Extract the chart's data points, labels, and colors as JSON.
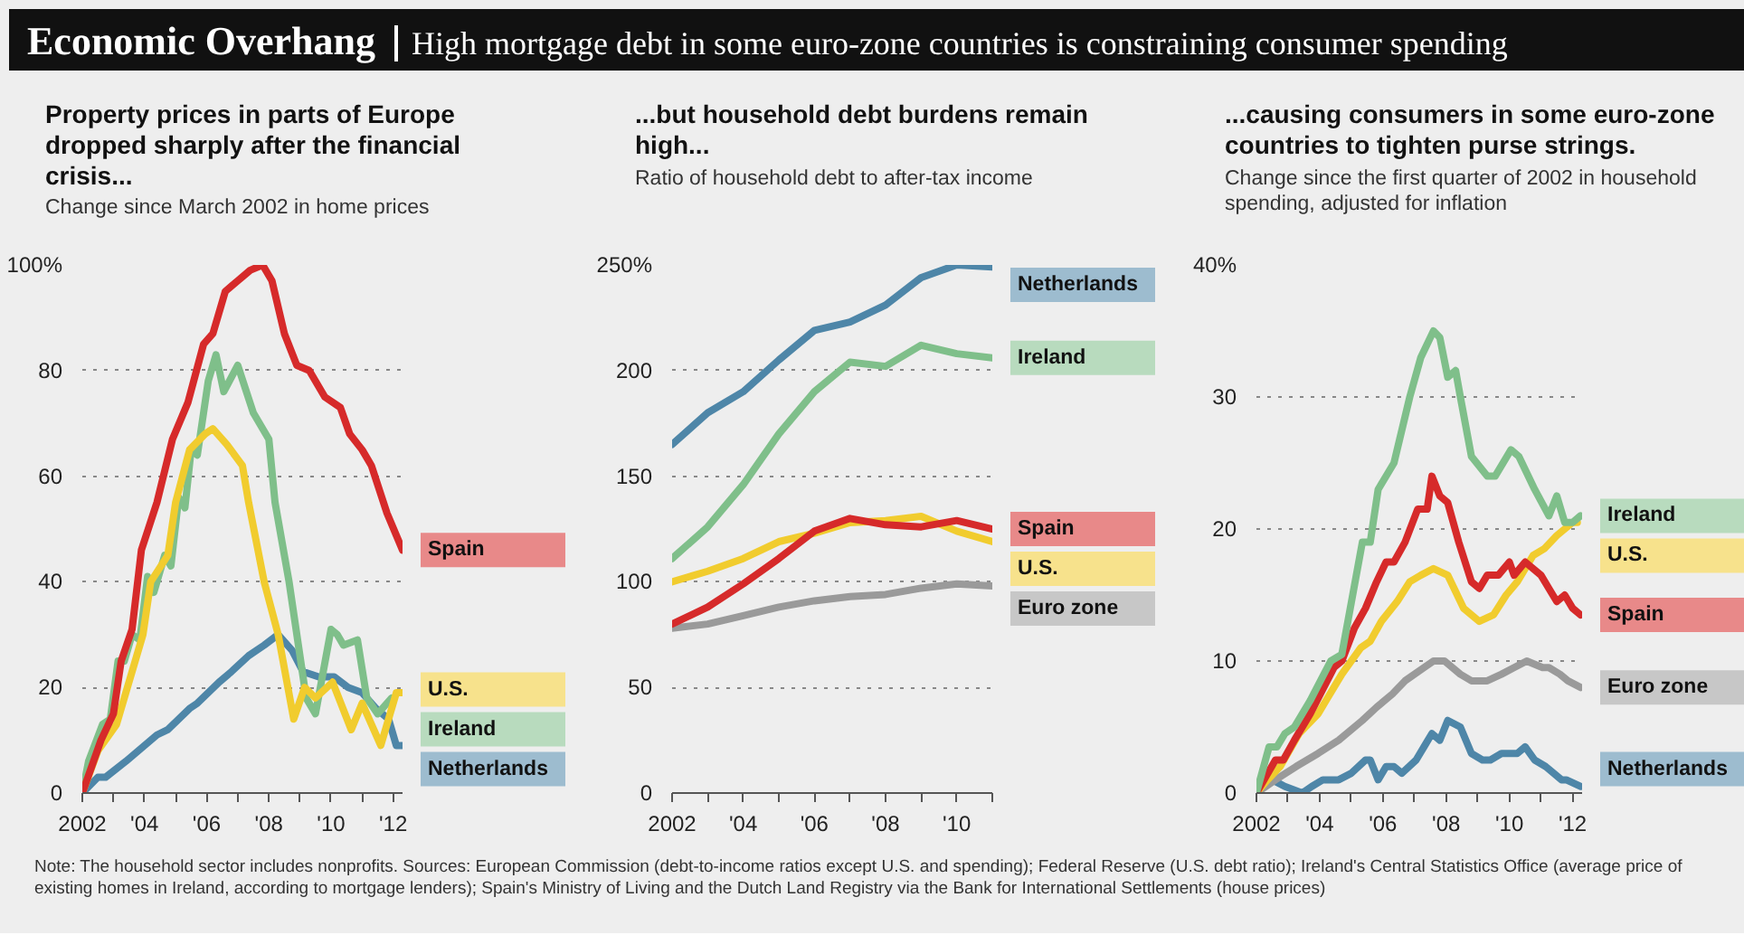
{
  "chart_data": [
    {
      "type": "other",
      "title": "Economic Overhang",
      "subtitle": "High mortgage debt in some euro-zone countries is constraining consumer spending",
      "annotations": [
        "Note: The household sector includes nonprofits.    Sources: European Commission (debt-to-income ratios except U.S. and spending); Federal Reserve (U.S. debt ratio); Ireland's Central Statistics Office (average price of existing homes in Ireland, according to mortgage lenders); Spain's Ministry of Living and the Dutch Land Registry via the Bank for International Settlements (house prices)"
      ]
    },
    {
      "type": "line",
      "title": "Property prices in parts of Europe dropped sharply after the financial crisis...",
      "subtitle": "Change since March 2002 in home prices",
      "xlim": [
        2002,
        2012.3
      ],
      "ylim": [
        0,
        100
      ],
      "xticks": [
        2002,
        {
          "value": 2003,
          "label": null
        },
        {
          "value": 2004,
          "label": "'04"
        },
        {
          "value": 2005,
          "label": null
        },
        {
          "value": 2006,
          "label": "'06"
        },
        {
          "value": 2007,
          "label": null
        },
        {
          "value": 2008,
          "label": "'08"
        },
        {
          "value": 2009,
          "label": null
        },
        {
          "value": 2010,
          "label": "'10"
        },
        {
          "value": 2011,
          "label": null
        },
        {
          "value": 2012,
          "label": "'12"
        }
      ],
      "yticks": [
        0,
        20,
        40,
        60,
        80,
        {
          "value": 100,
          "label": "100%"
        }
      ],
      "grid": "y",
      "series": [
        {
          "name": "Netherlands",
          "color": "#4e86a8",
          "x": [
            2002,
            2002.5,
            2002.75,
            2003.4,
            2004.4,
            2004.75,
            2005.45,
            2005.7,
            2006.4,
            2006.8,
            2007.35,
            2007.85,
            2008.3,
            2008.75,
            2009.1,
            2009.6,
            2010.1,
            2010.55,
            2011.0,
            2011.45,
            2011.85,
            2012.1,
            2012.3
          ],
          "values": [
            0,
            3,
            3,
            6,
            11,
            12,
            16,
            17,
            21,
            23,
            26,
            28,
            30,
            27,
            23,
            22,
            22,
            20,
            19,
            16,
            14,
            9,
            9
          ]
        },
        {
          "name": "Ireland",
          "color": "#7fbf8a",
          "x": [
            2002,
            2002.2,
            2002.65,
            2002.9,
            2003.15,
            2003.35,
            2003.6,
            2003.85,
            2004.1,
            2004.3,
            2004.65,
            2004.85,
            2005.1,
            2005.3,
            2005.5,
            2005.7,
            2006.05,
            2006.3,
            2006.55,
            2007.0,
            2007.5,
            2008.0,
            2008.2,
            2008.65,
            2009.2,
            2009.5,
            2010.0,
            2010.2,
            2010.4,
            2010.85,
            2011.15,
            2011.5,
            2011.95
          ],
          "values": [
            0,
            6,
            13,
            14,
            25,
            25,
            30,
            29,
            41,
            38,
            45,
            43,
            56,
            54,
            65,
            64,
            78,
            83,
            76,
            81,
            72,
            67,
            55,
            40,
            18,
            15,
            31,
            30,
            28,
            29,
            18,
            15,
            18
          ]
        },
        {
          "name": "U.S.",
          "color": "#f1cc2e",
          "x": [
            2002,
            2002.5,
            2003.1,
            2003.55,
            2003.95,
            2004.2,
            2004.75,
            2005.0,
            2005.45,
            2005.95,
            2006.2,
            2006.65,
            2007.15,
            2007.35,
            2007.85,
            2008.3,
            2008.8,
            2009.15,
            2009.5,
            2010.05,
            2010.65,
            2011.0,
            2011.6,
            2012.1,
            2012.3
          ],
          "values": [
            0,
            8,
            13,
            22,
            30,
            40,
            45,
            55,
            65,
            68,
            69,
            66,
            62,
            55,
            40,
            30,
            14,
            20,
            18,
            21,
            12,
            17,
            9,
            19,
            19
          ]
        },
        {
          "name": "Spain",
          "color": "#d62a2a",
          "x": [
            2002,
            2002.6,
            2003.0,
            2003.25,
            2003.6,
            2003.9,
            2004.4,
            2004.9,
            2005.4,
            2005.9,
            2006.2,
            2006.6,
            2007.0,
            2007.4,
            2007.8,
            2008.1,
            2008.5,
            2008.9,
            2009.3,
            2009.8,
            2010.3,
            2010.6,
            2011.0,
            2011.3,
            2011.8,
            2012.3
          ],
          "values": [
            0,
            10,
            15,
            25,
            31,
            46,
            55,
            67,
            74,
            85,
            87,
            95,
            97,
            99,
            100,
            97,
            87,
            81,
            80,
            75,
            73,
            68,
            65,
            62,
            53,
            46
          ]
        }
      ]
    },
    {
      "type": "line",
      "title": "...but household debt burdens remain high...",
      "subtitle": "Ratio of household debt to after-tax income",
      "xlim": [
        2002,
        2011
      ],
      "ylim": [
        0,
        250
      ],
      "xticks": [
        2002,
        {
          "value": 2003,
          "label": null
        },
        {
          "value": 2004,
          "label": "'04"
        },
        {
          "value": 2005,
          "label": null
        },
        {
          "value": 2006,
          "label": "'06"
        },
        {
          "value": 2007,
          "label": null
        },
        {
          "value": 2008,
          "label": "'08"
        },
        {
          "value": 2009,
          "label": null
        },
        {
          "value": 2010,
          "label": "'10"
        },
        {
          "value": 2011,
          "label": null
        }
      ],
      "yticks": [
        0,
        50,
        100,
        150,
        200,
        {
          "value": 250,
          "label": "250%"
        }
      ],
      "grid": "y",
      "x": [
        2002,
        2003,
        2004,
        2005,
        2006,
        2007,
        2008,
        2009,
        2010,
        2011
      ],
      "series": [
        {
          "name": "Euro zone",
          "color": "#9a9a9a",
          "values": [
            78,
            80,
            84,
            88,
            91,
            93,
            94,
            97,
            99,
            98
          ]
        },
        {
          "name": "U.S.",
          "color": "#f1cc2e",
          "values": [
            100,
            105,
            111,
            119,
            123,
            128,
            129,
            131,
            124,
            119
          ]
        },
        {
          "name": "Spain",
          "color": "#d62a2a",
          "values": [
            80,
            88,
            99,
            111,
            124,
            130,
            127,
            126,
            129,
            125
          ]
        },
        {
          "name": "Ireland",
          "color": "#7fbf8a",
          "values": [
            111,
            126,
            146,
            170,
            190,
            204,
            202,
            212,
            208,
            206
          ]
        },
        {
          "name": "Netherlands",
          "color": "#4e86a8",
          "values": [
            165,
            180,
            190,
            205,
            219,
            223,
            231,
            244,
            250,
            249
          ]
        }
      ]
    },
    {
      "type": "line",
      "title": "...causing consumers in some euro-zone countries to tighten purse strings.",
      "subtitle": "Change since the first quarter of 2002 in household spending, adjusted for inflation",
      "xlim": [
        2002,
        2012.3
      ],
      "ylim": [
        0,
        40
      ],
      "xticks": [
        2002,
        {
          "value": 2003,
          "label": null
        },
        {
          "value": 2004,
          "label": "'04"
        },
        {
          "value": 2005,
          "label": null
        },
        {
          "value": 2006,
          "label": "'06"
        },
        {
          "value": 2007,
          "label": null
        },
        {
          "value": 2008,
          "label": "'08"
        },
        {
          "value": 2009,
          "label": null
        },
        {
          "value": 2010,
          "label": "'10"
        },
        {
          "value": 2011,
          "label": null
        },
        {
          "value": 2012,
          "label": "'12"
        }
      ],
      "yticks": [
        0,
        10,
        20,
        30,
        {
          "value": 40,
          "label": "40%"
        }
      ],
      "grid": "y",
      "series": [
        {
          "name": "Netherlands",
          "color": "#4e86a8",
          "x": [
            2002,
            2002.5,
            2002.9,
            2003.45,
            2003.75,
            2004.1,
            2004.6,
            2005.0,
            2005.45,
            2005.6,
            2005.85,
            2006.1,
            2006.35,
            2006.6,
            2007.05,
            2007.3,
            2007.55,
            2007.8,
            2008.05,
            2008.45,
            2008.8,
            2009.15,
            2009.4,
            2009.75,
            2010.25,
            2010.5,
            2010.8,
            2011.15,
            2011.65,
            2011.8,
            2012.25
          ],
          "values": [
            0,
            1,
            0.5,
            0,
            0.5,
            1,
            1,
            1.5,
            2.5,
            2.5,
            1,
            2,
            2,
            1.5,
            2.5,
            3.5,
            4.5,
            4,
            5.5,
            5,
            3,
            2.5,
            2.5,
            3,
            3,
            3.5,
            2.5,
            2,
            1,
            1,
            0.5
          ]
        },
        {
          "name": "Euro zone",
          "color": "#9a9a9a",
          "x": [
            2002,
            2002.6,
            2003.25,
            2003.95,
            2004.6,
            2005.35,
            2005.8,
            2006.3,
            2006.7,
            2007.3,
            2007.6,
            2007.95,
            2008.45,
            2008.8,
            2009.3,
            2009.75,
            2010.15,
            2010.55,
            2011.05,
            2011.25,
            2011.6,
            2011.85,
            2012.25
          ],
          "values": [
            0,
            1,
            2,
            3,
            4,
            5.5,
            6.5,
            7.5,
            8.5,
            9.5,
            10,
            10,
            9,
            8.5,
            8.5,
            9,
            9.5,
            10,
            9.5,
            9.5,
            9,
            8.5,
            8
          ]
        },
        {
          "name": "U.S.",
          "color": "#f1cc2e",
          "x": [
            2002,
            2002.35,
            2002.75,
            2003.35,
            2003.95,
            2004.2,
            2004.7,
            2005.3,
            2005.6,
            2005.95,
            2006.45,
            2006.85,
            2007.2,
            2007.6,
            2008.05,
            2008.55,
            2009.05,
            2009.5,
            2009.9,
            2010.25,
            2010.75,
            2011.1,
            2011.5,
            2012.0,
            2012.15
          ],
          "values": [
            0,
            1,
            2,
            4.5,
            6,
            7,
            9,
            11,
            11.5,
            13,
            14.5,
            16,
            16.5,
            17,
            16.5,
            14,
            13,
            13.5,
            15,
            16,
            18,
            18.5,
            19.5,
            20.5,
            20.5
          ]
        },
        {
          "name": "Spain",
          "color": "#d62a2a",
          "x": [
            2002,
            2002.6,
            2002.85,
            2003.2,
            2003.7,
            2004.45,
            2004.7,
            2005.1,
            2005.45,
            2005.8,
            2006.1,
            2006.35,
            2006.7,
            2007.1,
            2007.4,
            2007.55,
            2007.8,
            2008.05,
            2008.4,
            2008.8,
            2009.05,
            2009.3,
            2009.65,
            2010.0,
            2010.15,
            2010.5,
            2011.0,
            2011.25,
            2011.5,
            2011.75,
            2012.0,
            2012.25
          ],
          "values": [
            0,
            2.5,
            2.5,
            4,
            6,
            9.5,
            10,
            12.5,
            14,
            16,
            17.5,
            17.5,
            19,
            21.5,
            21.5,
            24,
            22.5,
            22,
            19,
            16,
            15.5,
            16.5,
            16.5,
            17.5,
            16.5,
            17.5,
            16.5,
            15.5,
            14.5,
            15,
            14,
            13.5
          ]
        },
        {
          "name": "Ireland",
          "color": "#7fbf8a",
          "x": [
            2002,
            2002.4,
            2002.65,
            2002.9,
            2003.2,
            2003.7,
            2004.35,
            2004.7,
            2005.35,
            2005.6,
            2005.85,
            2006.35,
            2006.85,
            2007.2,
            2007.6,
            2007.8,
            2008.05,
            2008.3,
            2008.45,
            2008.8,
            2009.3,
            2009.55,
            2010.05,
            2010.3,
            2010.8,
            2011.25,
            2011.5,
            2011.75,
            2012.0,
            2012.25
          ],
          "values": [
            0,
            3.5,
            3.5,
            4.5,
            5,
            7,
            10,
            10.5,
            19,
            19,
            23,
            25,
            30,
            33,
            35,
            34.5,
            31.5,
            32,
            30,
            25.5,
            24,
            24,
            26,
            25.5,
            23,
            21,
            22.5,
            20.5,
            20.5,
            21
          ]
        }
      ]
    }
  ]
}
